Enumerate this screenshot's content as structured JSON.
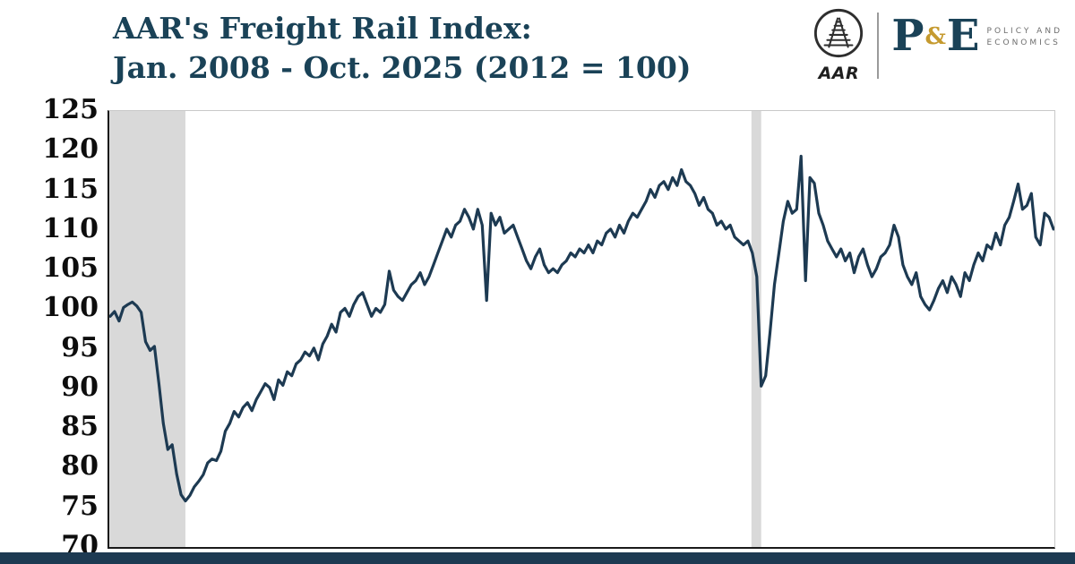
{
  "header": {
    "title_line1": "AAR's Freight Rail Index:",
    "title_line2": "Jan. 2008 - Oct. 2025 (2012 = 100)",
    "logo": {
      "aar_label": "AAR",
      "pe_p": "P",
      "pe_amp": "&",
      "pe_e": "E",
      "pe_sub_line1": "POLICY AND",
      "pe_sub_line2": "ECONOMICS"
    }
  },
  "colors": {
    "line_navy": "#1d3a52",
    "title_navy": "#1a4257",
    "recession_band_gray": "#d9d9d9",
    "gold": "#c59a2f",
    "footer_strip": "#1d3a52"
  },
  "chart_data": {
    "type": "line",
    "title": "AAR's Freight Rail Index: Jan. 2008 - Oct. 2025 (2012 = 100)",
    "series_name": "Freight Rail Index (2012 = 100)",
    "frequency": "monthly",
    "x_start": "2008-01",
    "x_end": "2025-10",
    "ylim": [
      70,
      125
    ],
    "yticks": [
      70,
      75,
      80,
      85,
      90,
      95,
      100,
      105,
      110,
      115,
      120,
      125
    ],
    "grid": false,
    "legend": "none",
    "line_color": "#1d3a52",
    "recession_bands": [
      {
        "name": "great-recession",
        "start_month_index": 0,
        "end_month_index": 17
      },
      {
        "name": "covid-recession",
        "start_month_index": 145,
        "end_month_index": 147
      }
    ],
    "values": [
      99.1,
      99.7,
      98.5,
      100.2,
      100.6,
      100.9,
      100.4,
      99.6,
      95.9,
      94.8,
      95.3,
      90.6,
      85.6,
      82.3,
      82.9,
      79.2,
      76.6,
      75.8,
      76.5,
      77.6,
      78.3,
      79.1,
      80.6,
      81.1,
      80.9,
      82.1,
      84.6,
      85.6,
      87.1,
      86.4,
      87.6,
      88.2,
      87.2,
      88.6,
      89.6,
      90.6,
      90.1,
      88.6,
      91.1,
      90.4,
      92.1,
      91.6,
      93.1,
      93.6,
      94.6,
      94.1,
      95.1,
      93.6,
      95.6,
      96.6,
      98.1,
      97.1,
      99.6,
      100.1,
      99.1,
      100.6,
      101.6,
      102.1,
      100.6,
      99.1,
      100.1,
      99.6,
      100.6,
      104.8,
      102.4,
      101.6,
      101.1,
      102.1,
      103.1,
      103.6,
      104.6,
      103.1,
      104.1,
      105.6,
      107.1,
      108.6,
      110.1,
      109.1,
      110.6,
      111.1,
      112.6,
      111.6,
      110.1,
      112.6,
      110.6,
      101.1,
      112.1,
      110.6,
      111.6,
      109.6,
      110.1,
      110.6,
      109.1,
      107.6,
      106.1,
      105.1,
      106.6,
      107.6,
      105.6,
      104.6,
      105.1,
      104.6,
      105.6,
      106.1,
      107.1,
      106.6,
      107.6,
      107.1,
      108.1,
      107.1,
      108.6,
      108.1,
      109.6,
      110.1,
      109.1,
      110.6,
      109.6,
      111.1,
      112.1,
      111.6,
      112.6,
      113.6,
      115.1,
      114.1,
      115.6,
      116.1,
      115.1,
      116.6,
      115.6,
      117.6,
      116.1,
      115.6,
      114.6,
      113.1,
      114.1,
      112.6,
      112.1,
      110.6,
      111.1,
      110.1,
      110.6,
      109.1,
      108.6,
      108.1,
      108.6,
      107.1,
      104.1,
      90.3,
      91.6,
      97.1,
      103.1,
      107.1,
      111.1,
      113.6,
      112.1,
      112.6,
      119.3,
      103.6,
      116.6,
      115.9,
      112.1,
      110.6,
      108.6,
      107.6,
      106.6,
      107.6,
      106.1,
      107.1,
      104.6,
      106.6,
      107.6,
      105.6,
      104.1,
      105.1,
      106.6,
      107.1,
      108.1,
      110.6,
      109.1,
      105.6,
      104.1,
      103.1,
      104.6,
      101.6,
      100.6,
      99.9,
      101.1,
      102.6,
      103.6,
      102.1,
      104.1,
      103.1,
      101.6,
      104.6,
      103.6,
      105.6,
      107.1,
      106.1,
      108.1,
      107.6,
      109.6,
      108.1,
      110.6,
      111.6,
      113.6,
      115.8,
      112.6,
      113.1,
      114.6,
      109.1,
      108.1,
      112.1,
      111.6,
      110.1
    ]
  }
}
